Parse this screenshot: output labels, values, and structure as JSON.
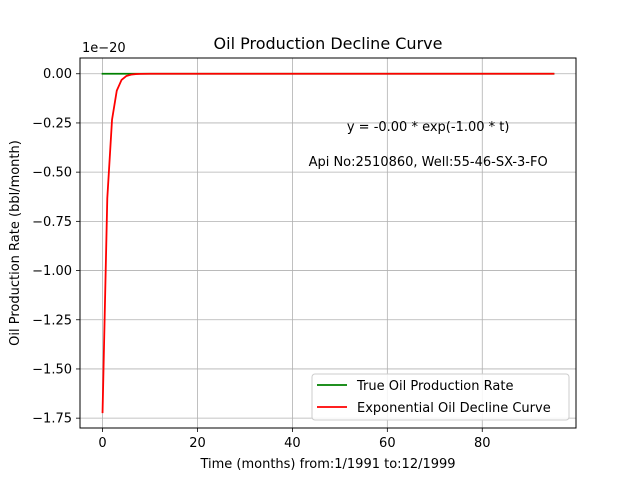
{
  "chart_data": {
    "type": "line",
    "title": "Oil Production Decline Curve",
    "xlabel": "Time (months) from:1/1991 to:12/1999",
    "ylabel": "Oil Production Rate (bbl/month)",
    "y_offset_text": "1e−20",
    "xlim": [
      -4.75,
      99.75
    ],
    "ylim": [
      -1.8,
      0.08
    ],
    "x_ticks": [
      0,
      20,
      40,
      60,
      80
    ],
    "x_tick_labels": [
      "0",
      "20",
      "40",
      "60",
      "80"
    ],
    "y_ticks": [
      0.0,
      -0.25,
      -0.5,
      -0.75,
      -1.0,
      -1.25,
      -1.5,
      -1.75
    ],
    "y_tick_labels": [
      "0.00",
      "−0.25",
      "−0.50",
      "−0.75",
      "−1.00",
      "−1.25",
      "−1.50",
      "−1.75"
    ],
    "grid": true,
    "legend_position": "lower right",
    "annotations": [
      {
        "text": "y = -0.00 * exp(-1.00 * t)",
        "x": 68.6,
        "y": -0.29
      },
      {
        "text": "Api No:2510860, Well:55-46-SX-3-FO",
        "x": 68.6,
        "y": -0.47
      }
    ],
    "series": [
      {
        "name": "True Oil Production Rate",
        "color": "#008000",
        "x": [
          0,
          5,
          10,
          20,
          30,
          40,
          50,
          60,
          70,
          80,
          90,
          95
        ],
        "y": [
          0,
          0,
          0,
          0,
          0,
          0,
          0,
          0,
          0,
          0,
          0,
          0
        ]
      },
      {
        "name": "Exponential Oil Decline Curve",
        "color": "#ff0000",
        "x": [
          0,
          1,
          2,
          3,
          4,
          5,
          6,
          7,
          8,
          10,
          15,
          20,
          30,
          40,
          50,
          60,
          70,
          80,
          90,
          95
        ],
        "y": [
          -1.72,
          -0.633,
          -0.233,
          -0.0856,
          -0.0315,
          -0.0116,
          -0.0043,
          -0.0016,
          -0.0006,
          0,
          0,
          0,
          0,
          0,
          0,
          0,
          0,
          0,
          0,
          0
        ]
      }
    ]
  }
}
